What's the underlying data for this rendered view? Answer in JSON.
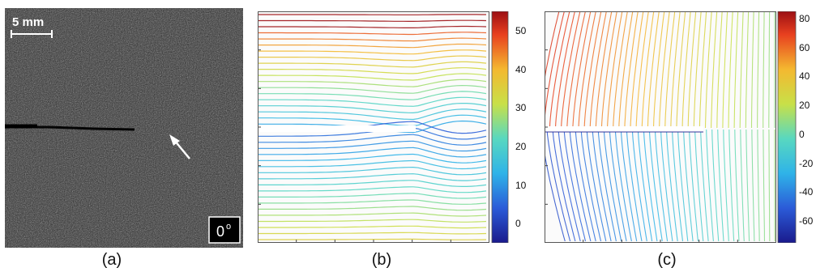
{
  "panel_a": {
    "scale_label": "5 mm",
    "angle_label": "0",
    "angle_unit": "o",
    "caption": "(a)"
  },
  "panel_b": {
    "caption": "(b)",
    "colorbar_ticks": [
      "50",
      "40",
      "30",
      "20",
      "10",
      "0"
    ],
    "colorbar_range": [
      -5,
      55
    ]
  },
  "panel_c": {
    "caption": "(c)",
    "colorbar_ticks": [
      "80",
      "60",
      "40",
      "20",
      "0",
      "-20",
      "-40",
      "-60"
    ],
    "colorbar_range": [
      -75,
      85
    ]
  },
  "colors": {
    "speckle_bg": "#2b2b2b",
    "crack_gap": "#ffffff"
  }
}
